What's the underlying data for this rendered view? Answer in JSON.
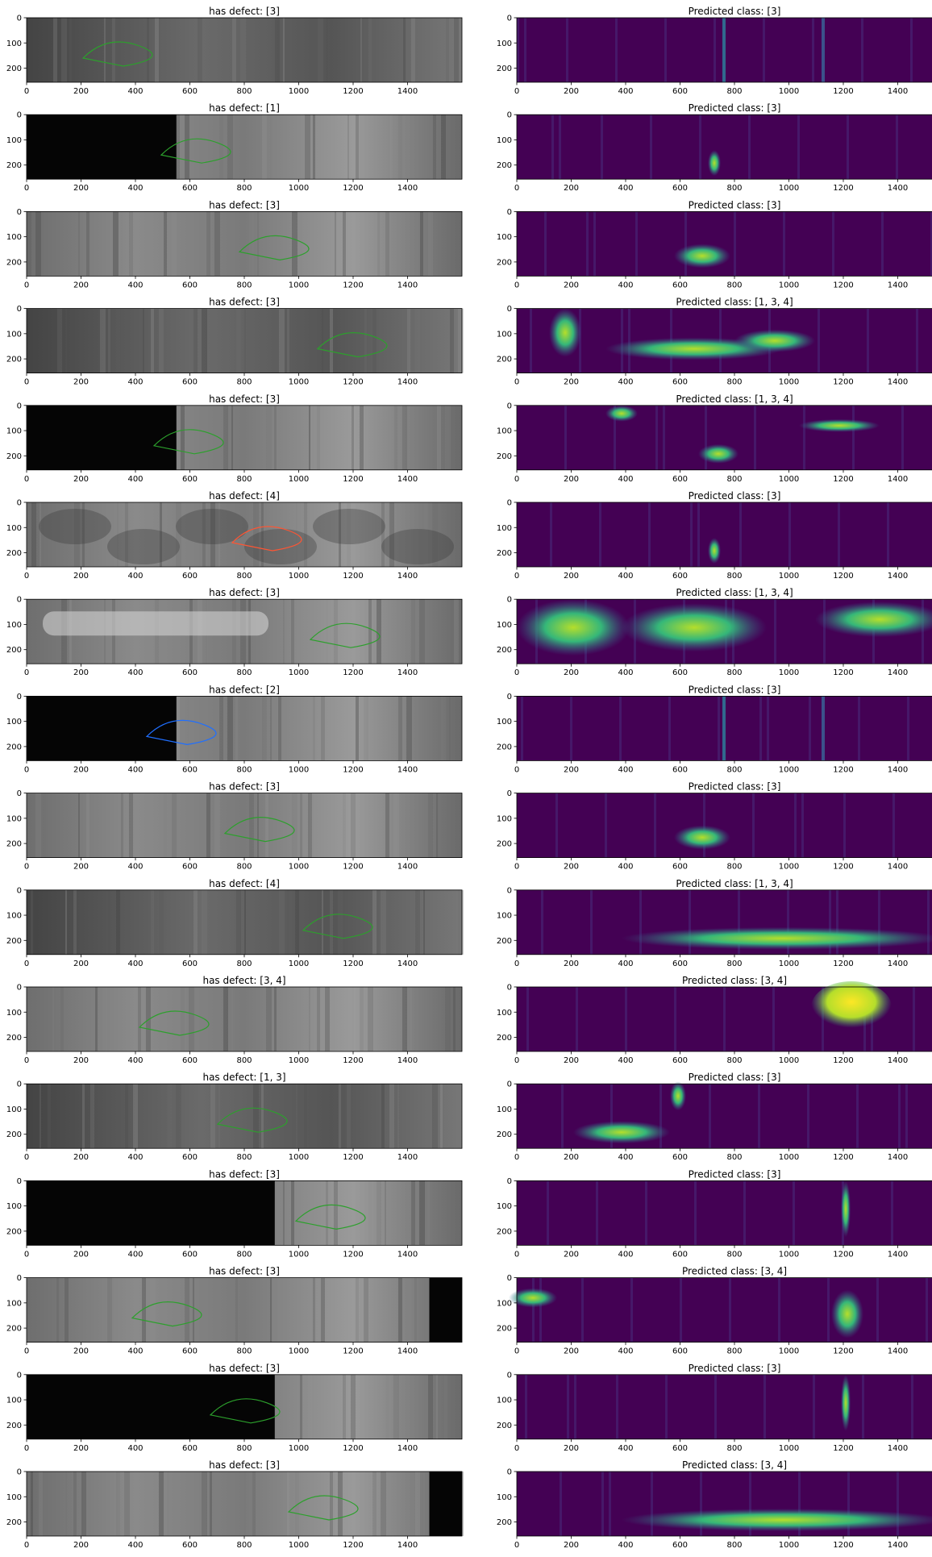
{
  "figure": {
    "rows": [
      {
        "left_title": "has defect: [3]",
        "right_title": "Predicted class: [3]",
        "left_img": "dark-stripes",
        "right_mask": "vertical-streaks"
      },
      {
        "left_title": "has defect: [1]",
        "right_title": "Predicted class: [3]",
        "left_img": "black-left",
        "right_mask": "small-spot"
      },
      {
        "left_title": "has defect: [3]",
        "right_title": "Predicted class: [3]",
        "left_img": "grey-texture",
        "right_mask": "blob"
      },
      {
        "left_title": "has defect: [3]",
        "right_title": "Predicted class: [1, 3, 4]",
        "left_img": "grey-stripes",
        "right_mask": "many-streaks"
      },
      {
        "left_title": "has defect: [3]",
        "right_title": "Predicted class: [1, 3, 4]",
        "left_img": "black-left",
        "right_mask": "bars"
      },
      {
        "left_title": "has defect: [4]",
        "right_title": "Predicted class: [3]",
        "left_img": "cloudy",
        "right_mask": "small-spot"
      },
      {
        "left_title": "has defect: [3]",
        "right_title": "Predicted class: [1, 3, 4]",
        "left_img": "bright-scratch",
        "right_mask": "large-bright"
      },
      {
        "left_title": "has defect: [2]",
        "right_title": "Predicted class: [3]",
        "left_img": "black-left",
        "right_mask": "vertical-streaks"
      },
      {
        "left_title": "has defect: [3]",
        "right_title": "Predicted class: [3]",
        "left_img": "grey-texture",
        "right_mask": "blob"
      },
      {
        "left_title": "has defect: [4]",
        "right_title": "Predicted class: [1, 3, 4]",
        "left_img": "dark-stripes",
        "right_mask": "horizontal-band"
      },
      {
        "left_title": "has defect: [3, 4]",
        "right_title": "Predicted class: [3, 4]",
        "left_img": "grey-texture",
        "right_mask": "yellow-blob"
      },
      {
        "left_title": "has defect: [1, 3]",
        "right_title": "Predicted class: [3]",
        "left_img": "grey-stripes",
        "right_mask": "scattered"
      },
      {
        "left_title": "has defect: [3]",
        "right_title": "Predicted class: [3]",
        "left_img": "black-wide",
        "right_mask": "single-streak"
      },
      {
        "left_title": "has defect: [3]",
        "right_title": "Predicted class: [3, 4]",
        "left_img": "black-right",
        "right_mask": "left-streak"
      },
      {
        "left_title": "has defect: [3]",
        "right_title": "Predicted class: [3]",
        "left_img": "black-wide",
        "right_mask": "single-streak"
      },
      {
        "left_title": "has defect: [3]",
        "right_title": "Predicted class: [3, 4]",
        "left_img": "black-right",
        "right_mask": "horizontal-band"
      }
    ],
    "x_ticks": [
      "0",
      "200",
      "400",
      "600",
      "800",
      "1000",
      "1200",
      "1400"
    ],
    "y_ticks": [
      "0",
      "100",
      "200"
    ],
    "x_tick_values": [
      0,
      200,
      400,
      600,
      800,
      1000,
      1200,
      1400
    ],
    "y_tick_values": [
      0,
      100,
      200
    ],
    "x_range": [
      0,
      1600
    ],
    "y_range": [
      0,
      256
    ],
    "colors": {
      "mask_bg": "#440154",
      "mask_mid": "#31688e",
      "mask_hi": "#35b779",
      "mask_top": "#fde725",
      "contour_class3": "#2ca02c",
      "contour_class4": "#ff5533",
      "contour_class2": "#1f6fff"
    }
  }
}
